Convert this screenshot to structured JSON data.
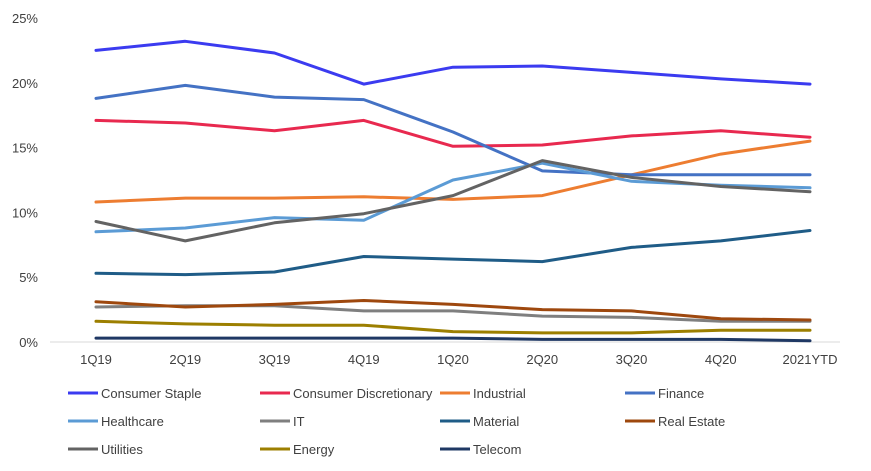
{
  "chart_data": {
    "type": "line",
    "categories": [
      "1Q19",
      "2Q19",
      "3Q19",
      "4Q19",
      "1Q20",
      "2Q20",
      "3Q20",
      "4Q20",
      "2021YTD"
    ],
    "ylim": [
      0,
      25
    ],
    "yticks": [
      "0%",
      "5%",
      "10%",
      "15%",
      "20%",
      "25%"
    ],
    "grid": false,
    "legend": "bottom",
    "series": [
      {
        "name": "Consumer Staple",
        "color": "#3b3bf0",
        "values": [
          22.5,
          23.2,
          22.3,
          19.9,
          21.2,
          21.3,
          20.8,
          20.3,
          19.9
        ]
      },
      {
        "name": "Consumer Discretionary",
        "color": "#e8294f",
        "values": [
          17.1,
          16.9,
          16.3,
          17.1,
          15.1,
          15.2,
          15.9,
          16.3,
          15.8
        ]
      },
      {
        "name": "Industrial",
        "color": "#ed7d31",
        "values": [
          10.8,
          11.1,
          11.1,
          11.2,
          11.0,
          11.3,
          12.9,
          14.5,
          15.5
        ]
      },
      {
        "name": "Finance",
        "color": "#4472c4",
        "values": [
          18.8,
          19.8,
          18.9,
          18.7,
          16.2,
          13.2,
          12.9,
          12.9,
          12.9
        ]
      },
      {
        "name": "Healthcare",
        "color": "#5b9bd5",
        "values": [
          8.5,
          8.8,
          9.6,
          9.4,
          12.5,
          13.8,
          12.4,
          12.1,
          11.9
        ]
      },
      {
        "name": "IT",
        "color": "#7f7f7f",
        "values": [
          2.7,
          2.8,
          2.8,
          2.4,
          2.4,
          2.0,
          1.9,
          1.6,
          1.6
        ]
      },
      {
        "name": "Material",
        "color": "#1f5c87",
        "values": [
          5.3,
          5.2,
          5.4,
          6.6,
          6.4,
          6.2,
          7.3,
          7.8,
          8.6
        ]
      },
      {
        "name": "Real Estate",
        "color": "#9e480e",
        "values": [
          3.1,
          2.7,
          2.9,
          3.2,
          2.9,
          2.5,
          2.4,
          1.8,
          1.7
        ]
      },
      {
        "name": "Utilities",
        "color": "#636363",
        "values": [
          9.3,
          7.8,
          9.2,
          9.9,
          11.3,
          14.0,
          12.7,
          12.0,
          11.6
        ]
      },
      {
        "name": "Energy",
        "color": "#9c7f00",
        "values": [
          1.6,
          1.4,
          1.3,
          1.3,
          0.8,
          0.7,
          0.7,
          0.9,
          0.9
        ]
      },
      {
        "name": "Telecom",
        "color": "#1f3864",
        "values": [
          0.3,
          0.3,
          0.3,
          0.3,
          0.3,
          0.2,
          0.2,
          0.2,
          0.1
        ]
      }
    ]
  }
}
